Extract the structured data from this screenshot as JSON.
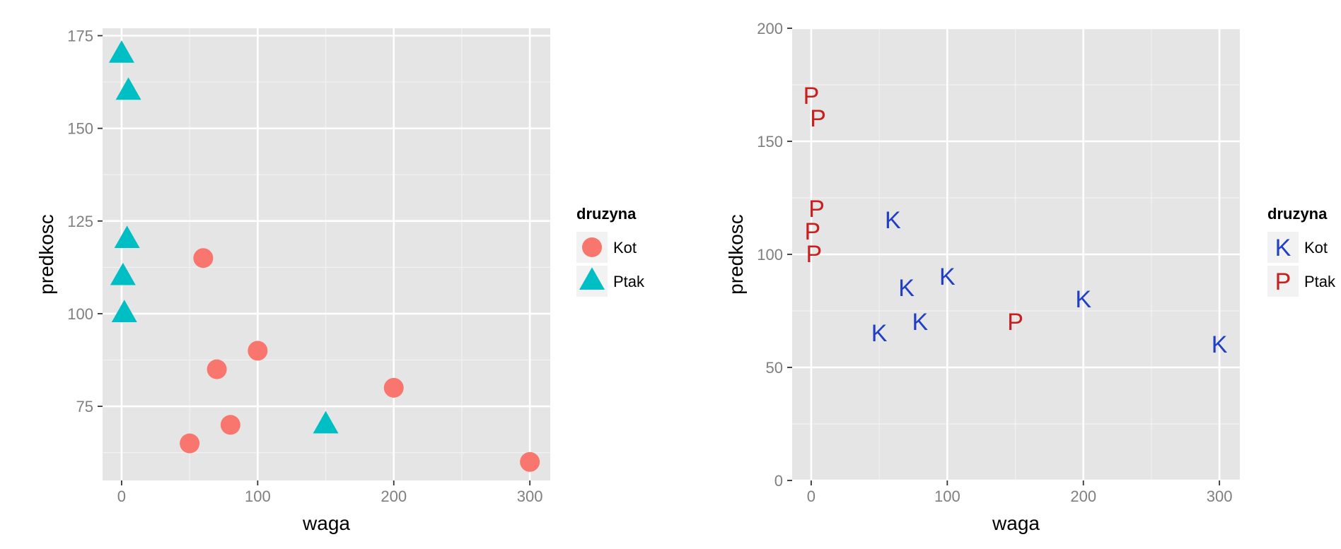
{
  "chart_data": [
    {
      "type": "scatter",
      "xlabel": "waga",
      "ylabel": "predkosc",
      "xlim": [
        -14,
        315
      ],
      "ylim": [
        55,
        177
      ],
      "xticks": [
        0,
        100,
        200,
        300
      ],
      "yticks": [
        75,
        100,
        125,
        150,
        175
      ],
      "xtick_labels": [
        "0",
        "100",
        "200",
        "300"
      ],
      "ytick_labels": [
        "75",
        "100",
        "125",
        "150",
        "175"
      ],
      "grid": true,
      "legend": {
        "title": "druzyna",
        "position": "right",
        "entries": [
          {
            "label": "Kot",
            "shape": "circle",
            "color": "#F8766D"
          },
          {
            "label": "Ptak",
            "shape": "triangle",
            "color": "#00BFC4"
          }
        ]
      },
      "series": [
        {
          "name": "Kot",
          "shape": "circle",
          "color": "#F8766D",
          "points": [
            [
              50,
              65
            ],
            [
              60,
              115
            ],
            [
              70,
              85
            ],
            [
              80,
              70
            ],
            [
              100,
              90
            ],
            [
              200,
              80
            ],
            [
              300,
              60
            ]
          ]
        },
        {
          "name": "Ptak",
          "shape": "triangle",
          "color": "#00BFC4",
          "points": [
            [
              0,
              170
            ],
            [
              5,
              160
            ],
            [
              4,
              120
            ],
            [
              1,
              110
            ],
            [
              2,
              100
            ],
            [
              150,
              70
            ]
          ]
        }
      ]
    },
    {
      "type": "scatter",
      "xlabel": "waga",
      "ylabel": "predkosc",
      "xlim": [
        -14,
        315
      ],
      "ylim": [
        0,
        200
      ],
      "xticks": [
        0,
        100,
        200,
        300
      ],
      "yticks": [
        0,
        50,
        100,
        150,
        200
      ],
      "xtick_labels": [
        "0",
        "100",
        "200",
        "300"
      ],
      "ytick_labels": [
        "0",
        "50",
        "100",
        "150",
        "200"
      ],
      "grid": true,
      "legend": {
        "title": "druzyna",
        "position": "right",
        "entries": [
          {
            "label": "Kot",
            "shape": "text",
            "glyph": "K",
            "color": "#1F3FC8"
          },
          {
            "label": "Ptak",
            "shape": "text",
            "glyph": "P",
            "color": "#C8201F"
          }
        ]
      },
      "series": [
        {
          "name": "Kot",
          "shape": "text",
          "glyph": "K",
          "color": "#1F3FC8",
          "points": [
            [
              50,
              65
            ],
            [
              60,
              115
            ],
            [
              70,
              85
            ],
            [
              80,
              70
            ],
            [
              100,
              90
            ],
            [
              200,
              80
            ],
            [
              300,
              60
            ]
          ]
        },
        {
          "name": "Ptak",
          "shape": "text",
          "glyph": "P",
          "color": "#C8201F",
          "points": [
            [
              0,
              170
            ],
            [
              5,
              160
            ],
            [
              4,
              120
            ],
            [
              1,
              110
            ],
            [
              2,
              100
            ],
            [
              150,
              70
            ]
          ]
        }
      ]
    }
  ]
}
